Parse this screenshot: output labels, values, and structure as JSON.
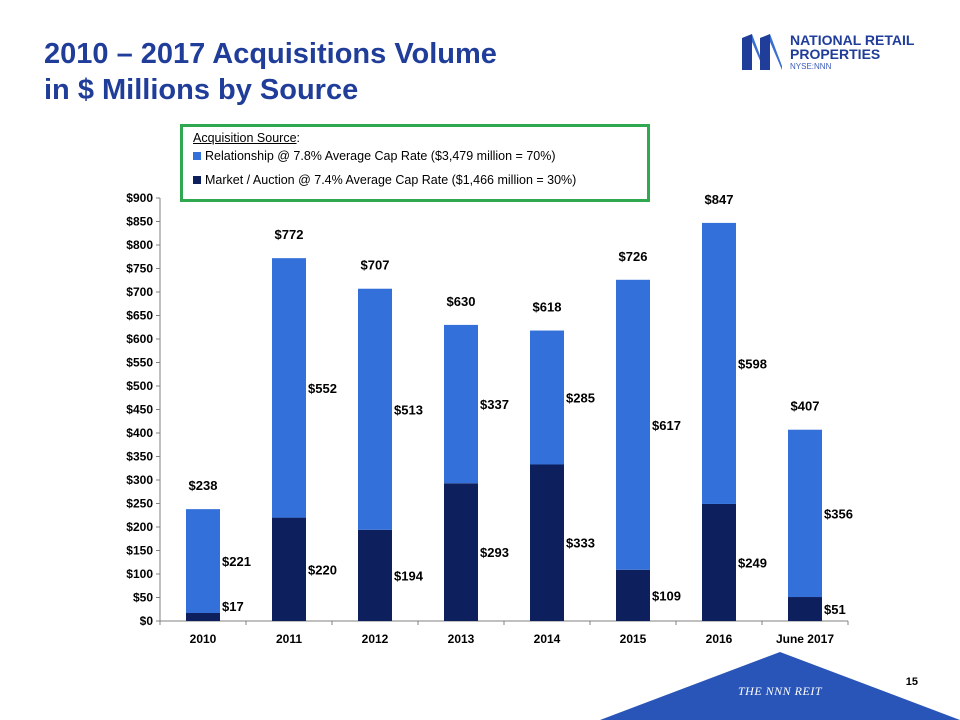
{
  "title": {
    "line1": "2010 – 2017 Acquisitions Volume",
    "line2": "in $ Millions by Source"
  },
  "logo": {
    "line1": "NATIONAL RETAIL",
    "line2": "PROPERTIES",
    "sub": "NYSE:NNN",
    "icon": "nnn-logo-icon"
  },
  "legend": {
    "heading": "Acquisition Source",
    "heading_suffix": ":",
    "relationship": "Relationship @ 7.8% Average Cap Rate ($3,479 million = 70%)",
    "market": "Market / Auction @ 7.4% Average Cap Rate ($1,466 million = 30%)"
  },
  "colors": {
    "relationship": "#3370d9",
    "market": "#0d1f5c",
    "title": "#1f3d99",
    "legend_border": "#2fa84f",
    "footer": "#2a55b8"
  },
  "chart_data": {
    "type": "bar",
    "stacked": true,
    "categories": [
      "2010",
      "2011",
      "2012",
      "2013",
      "2014",
      "2015",
      "2016",
      "June 2017"
    ],
    "series": [
      {
        "name": "Market / Auction",
        "values": [
          17,
          220,
          194,
          293,
          333,
          109,
          249,
          51
        ],
        "labels": [
          "$17",
          "$220",
          "$194",
          "$293",
          "$333",
          "$109",
          "$249",
          "$51"
        ]
      },
      {
        "name": "Relationship",
        "values": [
          221,
          552,
          513,
          337,
          285,
          617,
          598,
          356
        ],
        "labels": [
          "$221",
          "$552",
          "$513",
          "$337",
          "$285",
          "$617",
          "$598",
          "$356"
        ]
      }
    ],
    "totals": [
      238,
      772,
      707,
      630,
      618,
      726,
      847,
      407
    ],
    "total_labels": [
      "$238",
      "$772",
      "$707",
      "$630",
      "$618",
      "$726",
      "$847",
      "$407"
    ],
    "yticks": [
      0,
      50,
      100,
      150,
      200,
      250,
      300,
      350,
      400,
      450,
      500,
      550,
      600,
      650,
      700,
      750,
      800,
      850,
      900
    ],
    "ytick_labels": [
      "$0",
      "$50",
      "$100",
      "$150",
      "$200",
      "$250",
      "$300",
      "$350",
      "$400",
      "$450",
      "$500",
      "$550",
      "$600",
      "$650",
      "$700",
      "$750",
      "$800",
      "$850",
      "$900"
    ],
    "ylim": [
      0,
      900
    ],
    "title": "2010 – 2017 Acquisitions Volume in $ Millions by Source",
    "xlabel": "",
    "ylabel": ""
  },
  "footer": {
    "page_number": "15",
    "tagline": "THE NNN REIT"
  }
}
